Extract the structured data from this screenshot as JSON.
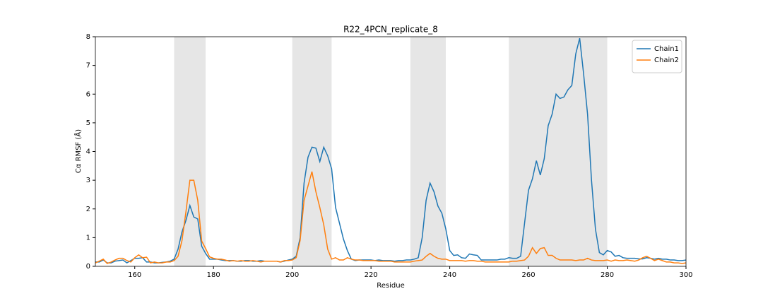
{
  "chart_data": {
    "type": "line",
    "title": "R22_4PCN_replicate_8",
    "xlabel": "Residue",
    "ylabel": "Cα RMSF (Å)",
    "x": [
      150,
      151,
      152,
      153,
      154,
      155,
      156,
      157,
      158,
      159,
      160,
      161,
      162,
      163,
      164,
      165,
      166,
      167,
      168,
      169,
      170,
      171,
      172,
      173,
      174,
      175,
      176,
      177,
      178,
      179,
      180,
      181,
      182,
      183,
      184,
      185,
      186,
      187,
      188,
      189,
      190,
      191,
      192,
      193,
      194,
      195,
      196,
      197,
      198,
      199,
      200,
      201,
      202,
      203,
      204,
      205,
      206,
      207,
      208,
      209,
      210,
      211,
      212,
      213,
      214,
      215,
      216,
      217,
      218,
      219,
      220,
      221,
      222,
      223,
      224,
      225,
      226,
      227,
      228,
      229,
      230,
      231,
      232,
      233,
      234,
      235,
      236,
      237,
      238,
      239,
      240,
      241,
      242,
      243,
      244,
      245,
      246,
      247,
      248,
      249,
      250,
      251,
      252,
      253,
      254,
      255,
      256,
      257,
      258,
      259,
      260,
      261,
      262,
      263,
      264,
      265,
      266,
      267,
      268,
      269,
      270,
      271,
      272,
      273,
      274,
      275,
      276,
      277,
      278,
      279,
      280,
      281,
      282,
      283,
      284,
      285,
      286,
      287,
      288,
      289,
      290,
      291,
      292,
      293,
      294,
      295,
      296,
      297,
      298,
      299,
      300
    ],
    "series": [
      {
        "name": "Chain1",
        "color": "#1f77b4",
        "values": [
          0.15,
          0.15,
          0.22,
          0.12,
          0.12,
          0.18,
          0.2,
          0.22,
          0.12,
          0.2,
          0.28,
          0.28,
          0.3,
          0.15,
          0.15,
          0.12,
          0.12,
          0.14,
          0.15,
          0.18,
          0.25,
          0.6,
          1.2,
          1.6,
          2.12,
          1.72,
          1.65,
          0.7,
          0.45,
          0.25,
          0.25,
          0.25,
          0.22,
          0.2,
          0.2,
          0.2,
          0.18,
          0.18,
          0.2,
          0.2,
          0.18,
          0.18,
          0.2,
          0.18,
          0.18,
          0.18,
          0.18,
          0.15,
          0.18,
          0.22,
          0.25,
          0.35,
          1.0,
          2.9,
          3.8,
          4.15,
          4.12,
          3.65,
          4.15,
          3.85,
          3.4,
          2.05,
          1.5,
          0.95,
          0.55,
          0.25,
          0.2,
          0.22,
          0.22,
          0.22,
          0.22,
          0.2,
          0.22,
          0.2,
          0.2,
          0.2,
          0.18,
          0.2,
          0.2,
          0.22,
          0.22,
          0.25,
          0.3,
          1.0,
          2.3,
          2.9,
          2.6,
          2.1,
          1.85,
          1.3,
          0.55,
          0.38,
          0.4,
          0.3,
          0.28,
          0.43,
          0.4,
          0.38,
          0.22,
          0.22,
          0.22,
          0.22,
          0.22,
          0.25,
          0.25,
          0.3,
          0.28,
          0.28,
          0.35,
          1.5,
          2.65,
          3.05,
          3.68,
          3.18,
          3.75,
          4.9,
          5.3,
          6.0,
          5.85,
          5.9,
          6.15,
          6.3,
          7.4,
          7.95,
          6.7,
          5.3,
          3.0,
          1.3,
          0.48,
          0.4,
          0.55,
          0.5,
          0.35,
          0.38,
          0.3,
          0.28,
          0.28,
          0.28,
          0.26,
          0.26,
          0.3,
          0.28,
          0.25,
          0.28,
          0.25,
          0.25,
          0.22,
          0.22,
          0.2,
          0.2,
          0.22
        ]
      },
      {
        "name": "Chain2",
        "color": "#ff7f0e",
        "values": [
          0.12,
          0.18,
          0.25,
          0.1,
          0.15,
          0.22,
          0.28,
          0.28,
          0.2,
          0.15,
          0.3,
          0.4,
          0.3,
          0.32,
          0.12,
          0.15,
          0.12,
          0.12,
          0.15,
          0.15,
          0.2,
          0.35,
          0.9,
          1.9,
          3.0,
          3.0,
          2.3,
          0.88,
          0.62,
          0.33,
          0.28,
          0.25,
          0.25,
          0.22,
          0.18,
          0.2,
          0.18,
          0.2,
          0.18,
          0.18,
          0.2,
          0.18,
          0.15,
          0.18,
          0.18,
          0.18,
          0.18,
          0.15,
          0.2,
          0.2,
          0.22,
          0.3,
          0.9,
          2.3,
          2.8,
          3.3,
          2.6,
          2.05,
          1.45,
          0.6,
          0.25,
          0.3,
          0.22,
          0.22,
          0.3,
          0.25,
          0.22,
          0.22,
          0.2,
          0.2,
          0.2,
          0.2,
          0.18,
          0.18,
          0.18,
          0.18,
          0.15,
          0.15,
          0.15,
          0.15,
          0.15,
          0.18,
          0.2,
          0.22,
          0.35,
          0.45,
          0.35,
          0.28,
          0.25,
          0.25,
          0.2,
          0.2,
          0.2,
          0.2,
          0.18,
          0.2,
          0.2,
          0.18,
          0.18,
          0.15,
          0.15,
          0.15,
          0.15,
          0.15,
          0.15,
          0.15,
          0.18,
          0.18,
          0.2,
          0.22,
          0.35,
          0.65,
          0.45,
          0.62,
          0.65,
          0.38,
          0.38,
          0.28,
          0.22,
          0.22,
          0.22,
          0.22,
          0.2,
          0.22,
          0.22,
          0.28,
          0.22,
          0.2,
          0.2,
          0.2,
          0.22,
          0.18,
          0.22,
          0.2,
          0.2,
          0.22,
          0.2,
          0.18,
          0.22,
          0.3,
          0.35,
          0.28,
          0.2,
          0.25,
          0.2,
          0.15,
          0.15,
          0.12,
          0.12,
          0.1,
          0.12
        ]
      }
    ],
    "shaded_spans": [
      [
        170,
        178
      ],
      [
        200,
        210
      ],
      [
        230,
        239
      ],
      [
        255,
        280
      ]
    ],
    "shade_color": "#e6e6e6",
    "xlim": [
      150,
      300
    ],
    "xticks": [
      160,
      180,
      200,
      220,
      240,
      260,
      280,
      300
    ],
    "ylim": [
      0,
      8
    ],
    "yticks": [
      0,
      1,
      2,
      3,
      4,
      5,
      6,
      7,
      8
    ],
    "legend": "upper right"
  }
}
